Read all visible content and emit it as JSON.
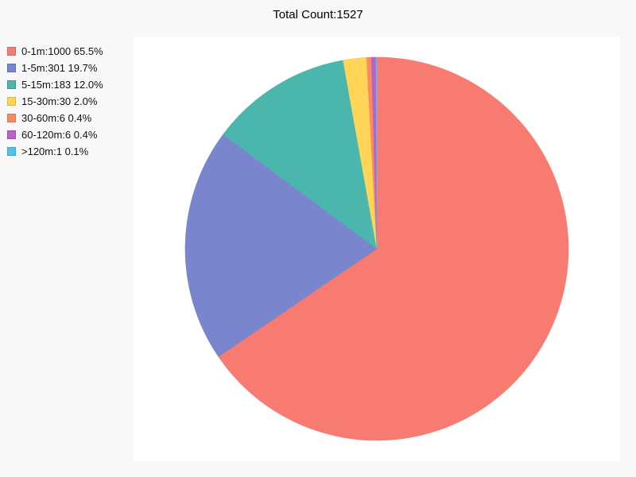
{
  "chart_data": {
    "type": "pie",
    "title": "Total Count:1527",
    "legend_position": "top-left",
    "slices": [
      {
        "label": "0-1m:1000 65.5%",
        "category": "0-1m",
        "value": 1000,
        "percent": 65.5,
        "color": "#f77b70"
      },
      {
        "label": "1-5m:301 19.7%",
        "category": "1-5m",
        "value": 301,
        "percent": 19.7,
        "color": "#7985cc"
      },
      {
        "label": "5-15m:183 12.0%",
        "category": "5-15m",
        "value": 183,
        "percent": 12.0,
        "color": "#4bb6ac"
      },
      {
        "label": "15-30m:30 2.0%",
        "category": "15-30m",
        "value": 30,
        "percent": 2.0,
        "color": "#fed556"
      },
      {
        "label": "30-60m:6 0.4%",
        "category": "30-60m",
        "value": 6,
        "percent": 0.4,
        "color": "#fe8964"
      },
      {
        "label": "60-120m:6 0.4%",
        "category": "60-120m",
        "value": 6,
        "percent": 0.4,
        "color": "#b665c4"
      },
      {
        "label": ">120m:1 0.1%",
        "category": ">120m",
        "value": 1,
        "percent": 0.1,
        "color": "#4ac3f6"
      }
    ]
  }
}
